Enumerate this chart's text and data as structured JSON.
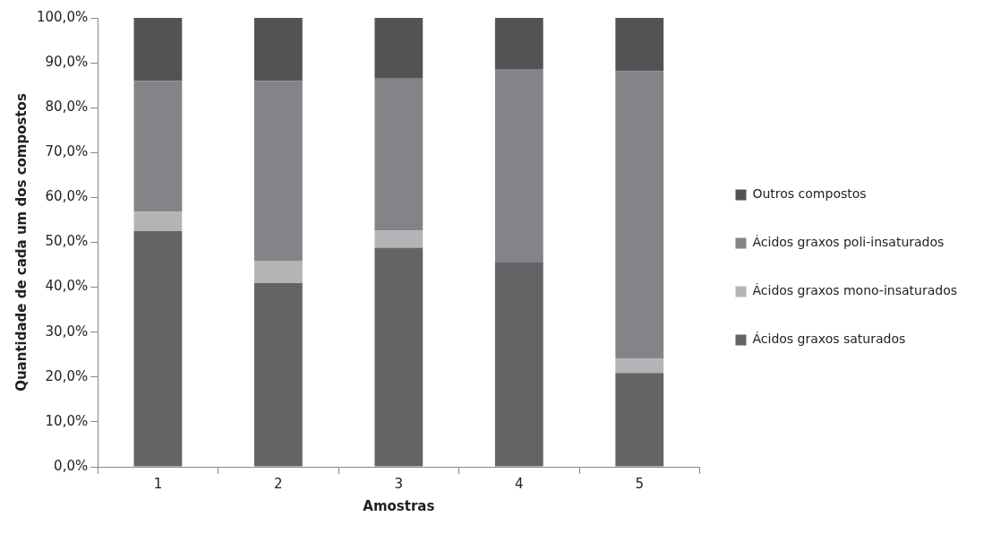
{
  "chart_data": {
    "type": "bar",
    "stacked": true,
    "xlabel": "Amostras",
    "ylabel": "Quantidade de cada um dos compostos",
    "categories": [
      "1",
      "2",
      "3",
      "4",
      "5"
    ],
    "series": [
      {
        "name": "Ácidos graxos saturados",
        "color": "#646466",
        "values": [
          52.5,
          40.9,
          48.8,
          45.5,
          20.9
        ]
      },
      {
        "name": "Ácidos graxos mono-insaturados",
        "color": "#b3b4b6",
        "values": [
          4.3,
          5.0,
          3.8,
          0,
          3.2
        ]
      },
      {
        "name": "Ácidos graxos poli-insaturados",
        "color": "#838487",
        "values": [
          29.2,
          40.1,
          33.9,
          43.1,
          64.0
        ]
      },
      {
        "name": "Outros compostos",
        "color": "#525354",
        "values": [
          14.0,
          14.0,
          13.5,
          11.4,
          11.9
        ]
      }
    ],
    "ylim": [
      0,
      100
    ],
    "yticks": [
      {
        "value": 0,
        "label": "0,0%"
      },
      {
        "value": 10,
        "label": "10,0%"
      },
      {
        "value": 20,
        "label": "20,0%"
      },
      {
        "value": 30,
        "label": "30,0%"
      },
      {
        "value": 40,
        "label": "40,0%"
      },
      {
        "value": 50,
        "label": "50,0%"
      },
      {
        "value": 60,
        "label": "60,0%"
      },
      {
        "value": 70,
        "label": "70,0%"
      },
      {
        "value": 80,
        "label": "80,0%"
      },
      {
        "value": 90,
        "label": "90,0%"
      },
      {
        "value": 100,
        "label": "100,0%"
      }
    ],
    "grid": false,
    "legend": "right"
  }
}
